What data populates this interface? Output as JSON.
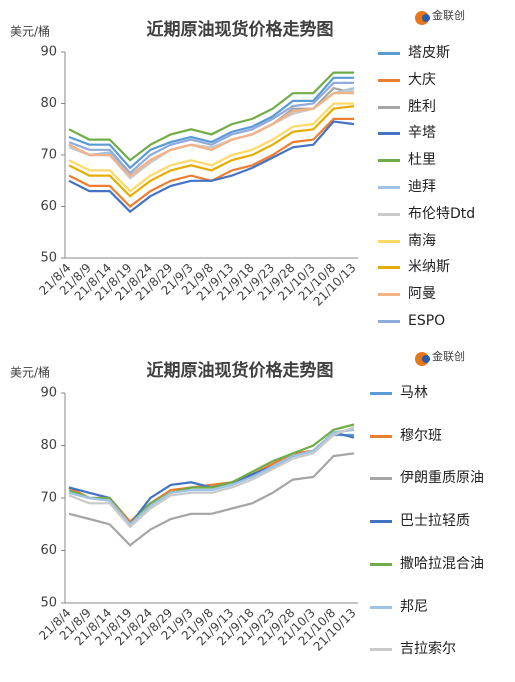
{
  "chart_data": [
    {
      "type": "line",
      "title": "近期原油现货价格走势图",
      "y_label": "美元/桶",
      "logo": "金联创",
      "categories": [
        "21/8/4",
        "21/8/9",
        "21/8/14",
        "21/8/19",
        "21/8/24",
        "21/8/29",
        "21/9/3",
        "21/9/8",
        "21/9/13",
        "21/9/18",
        "21/9/23",
        "21/9/28",
        "21/10/3",
        "21/10/8",
        "21/10/13"
      ],
      "ylim": [
        50,
        90
      ],
      "yticks": [
        50,
        60,
        70,
        80,
        90
      ],
      "grid": false,
      "series": [
        {
          "name": "塔皮斯",
          "color": "#5b9bd5",
          "values": [
            73.5,
            72,
            72,
            67.5,
            71,
            72.5,
            73.5,
            72.5,
            74.5,
            75.5,
            77.5,
            80.5,
            80.5,
            85,
            85
          ]
        },
        {
          "name": "大庆",
          "color": "#ed7d31",
          "values": [
            66,
            64,
            64,
            60,
            63,
            65,
            66,
            65,
            67,
            68,
            70,
            72.5,
            73,
            77,
            77
          ]
        },
        {
          "name": "胜利",
          "color": "#a5a5a5",
          "values": [
            72,
            70,
            70,
            66,
            69,
            71,
            72,
            71,
            73,
            74,
            76,
            79,
            79,
            83,
            82
          ]
        },
        {
          "name": "辛塔",
          "color": "#4472c4",
          "values": [
            65,
            63,
            63,
            59,
            62,
            64,
            65,
            65,
            66,
            67.5,
            69.5,
            71.5,
            72,
            76.5,
            76
          ]
        },
        {
          "name": "杜里",
          "color": "#70ad47",
          "values": [
            75,
            73,
            73,
            69,
            72,
            74,
            75,
            74,
            76,
            77,
            79,
            82,
            82,
            86,
            86
          ]
        },
        {
          "name": "迪拜",
          "color": "#9dc3e6",
          "values": [
            72,
            70,
            70.5,
            66,
            69,
            71,
            72,
            71,
            73,
            74,
            76,
            78.5,
            79,
            82,
            83
          ]
        },
        {
          "name": "布伦特Dtd",
          "color": "#c9c9c9",
          "values": [
            71.5,
            70,
            70,
            65.5,
            68.5,
            71,
            72,
            71.5,
            73,
            74,
            76,
            78,
            79,
            82,
            82.5
          ]
        },
        {
          "name": "南海",
          "color": "#ffd966",
          "values": [
            69,
            67,
            67,
            63,
            66,
            68,
            69,
            68,
            70,
            71,
            73,
            75.5,
            76,
            80,
            80
          ]
        },
        {
          "name": "米纳斯",
          "color": "#e6ac00",
          "values": [
            68,
            66,
            66,
            62,
            65,
            67,
            68,
            67,
            69,
            70,
            72,
            74.5,
            75,
            79,
            79.5
          ]
        },
        {
          "name": "阿曼",
          "color": "#f4b183",
          "values": [
            72,
            70,
            70,
            66,
            69,
            71,
            72,
            71,
            73,
            74,
            76,
            78.5,
            79,
            82,
            82
          ]
        },
        {
          "name": "ESPO",
          "color": "#8faadc",
          "values": [
            72.5,
            71,
            71,
            66.5,
            70,
            72,
            73,
            72,
            74,
            75,
            77,
            79.5,
            80,
            84,
            84
          ]
        }
      ]
    },
    {
      "type": "line",
      "title": "近期原油现货价格走势图",
      "y_label": "美元/桶",
      "logo": "金联创",
      "categories": [
        "21/8/4",
        "21/8/9",
        "21/8/14",
        "21/8/19",
        "21/8/24",
        "21/8/29",
        "21/9/3",
        "21/9/8",
        "21/9/13",
        "21/9/18",
        "21/9/23",
        "21/9/28",
        "21/10/3",
        "21/10/8",
        "21/10/13"
      ],
      "ylim": [
        50,
        90
      ],
      "yticks": [
        50,
        60,
        70,
        80,
        90
      ],
      "grid": false,
      "series": [
        {
          "name": "马林",
          "color": "#5b9bd5",
          "values": [
            71,
            70,
            69.5,
            65,
            69,
            71,
            72,
            72,
            73,
            74,
            76,
            78,
            79,
            82,
            82
          ]
        },
        {
          "name": "穆尔班",
          "color": "#ed7d31",
          "values": [
            72,
            70,
            70,
            65.5,
            69,
            71.5,
            72,
            72.5,
            73,
            74.5,
            76.5,
            78.5,
            79,
            82.5,
            83
          ]
        },
        {
          "name": "伊朗重质原油",
          "color": "#a5a5a5",
          "values": [
            67,
            66,
            65,
            61,
            64,
            66,
            67,
            67,
            68,
            69,
            71,
            73.5,
            74,
            78,
            78.5
          ]
        },
        {
          "name": "巴士拉轻质",
          "color": "#4472c4",
          "values": [
            72,
            71,
            70,
            65,
            70,
            72.5,
            73,
            72,
            73,
            74.5,
            76,
            78,
            79,
            82.5,
            81.5
          ]
        },
        {
          "name": "撒哈拉混合油",
          "color": "#70ad47",
          "values": [
            71.5,
            70,
            70,
            65,
            69,
            71,
            72,
            72,
            73,
            75,
            77,
            78.5,
            80,
            83,
            84
          ]
        },
        {
          "name": "邦尼",
          "color": "#9dc3e6",
          "values": [
            71,
            70,
            69.5,
            65,
            68.5,
            71,
            71.5,
            71.5,
            72.5,
            74,
            76,
            78,
            79,
            82.5,
            83
          ]
        },
        {
          "name": "吉拉索尔",
          "color": "#c9c9c9",
          "values": [
            70.5,
            69,
            69,
            64.5,
            68,
            70.5,
            71,
            71,
            72,
            73.5,
            75.5,
            77.5,
            78.5,
            82,
            83.5
          ]
        }
      ]
    }
  ]
}
